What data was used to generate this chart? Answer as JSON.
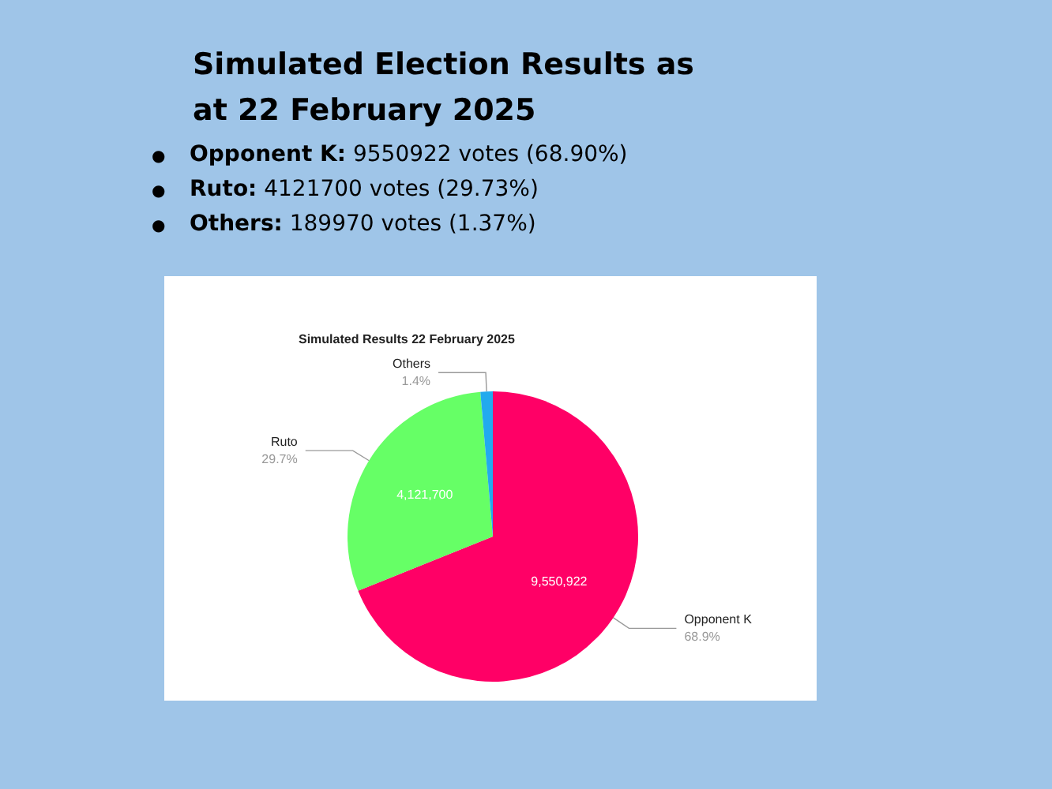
{
  "chart_data": {
    "type": "pie",
    "title": "Simulated Election Results as at 22 February 2025",
    "subtitle": "Simulated Results 22 February 2025",
    "annotations": [
      "● Opponent K: 9550922 votes (68.90%)",
      "● Ruto: 4121700 votes (29.73%)",
      "● Others: 189970 votes (1.37%)",
      {
        "text": "68.9%",
        "x": "Opponent K"
      },
      {
        "text": "29.7%",
        "x": "Ruto"
      },
      {
        "text": "1.4%",
        "x": "Others"
      }
    ],
    "categories": [
      "Opponent K",
      "Ruto",
      "Others"
    ],
    "values": [
      9550922,
      4121700,
      189970
    ],
    "colors": [
      "#ff0066",
      "#66ff66",
      "#22aaee"
    ],
    "value_labels": [
      "9,550,922",
      "4,121,700",
      null
    ],
    "legend": false
  }
}
